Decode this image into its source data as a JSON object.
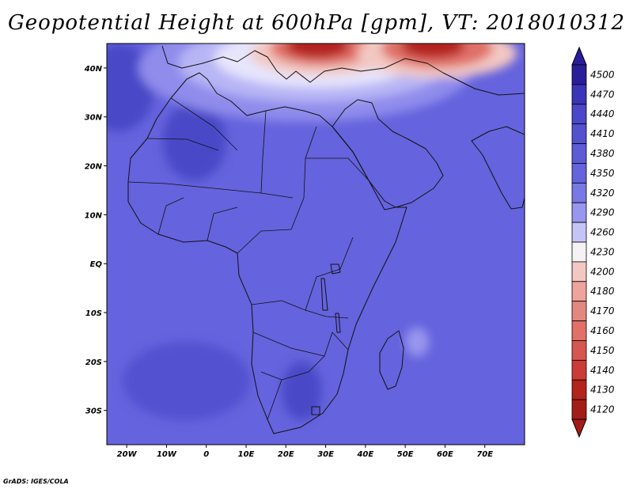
{
  "title": "Geopotential Height at 600hPa [gpm], VT: 2018010312",
  "credit": "GrADS: IGES/COLA",
  "map": {
    "lon_range": [
      -25,
      80
    ],
    "lat_range": [
      -37,
      45
    ],
    "lon_ticks": [
      {
        "value": -20,
        "label": "20W"
      },
      {
        "value": -10,
        "label": "10W"
      },
      {
        "value": 0,
        "label": "0"
      },
      {
        "value": 10,
        "label": "10E"
      },
      {
        "value": 20,
        "label": "20E"
      },
      {
        "value": 30,
        "label": "30E"
      },
      {
        "value": 40,
        "label": "40E"
      },
      {
        "value": 50,
        "label": "50E"
      },
      {
        "value": 60,
        "label": "60E"
      },
      {
        "value": 70,
        "label": "70E"
      }
    ],
    "lat_ticks": [
      {
        "value": 40,
        "label": "40N"
      },
      {
        "value": 30,
        "label": "30N"
      },
      {
        "value": 20,
        "label": "20N"
      },
      {
        "value": 10,
        "label": "10N"
      },
      {
        "value": 0,
        "label": "EQ"
      },
      {
        "value": -10,
        "label": "10S"
      },
      {
        "value": -20,
        "label": "20S"
      },
      {
        "value": -30,
        "label": "30S"
      }
    ],
    "background_color": "#6563dd",
    "features": [
      {
        "name": "ridge-northwest-atlantic",
        "color": "#4a48c8",
        "lon": -22,
        "lat": 36,
        "rlon": 9,
        "rlat": 9
      },
      {
        "name": "ridge-sahara",
        "color": "#4a48c8",
        "lon": -3,
        "lat": 25,
        "rlon": 8,
        "rlat": 8
      },
      {
        "name": "ridge-southern-africa",
        "color": "#4a48c8",
        "lon": 24,
        "lat": -26,
        "rlon": 5,
        "rlat": 6
      },
      {
        "name": "ridge-south-atlantic",
        "color": "#5351d0",
        "lon": -5,
        "lat": -24,
        "rlon": 16,
        "rlat": 8
      },
      {
        "name": "high-band-mediterranean-1",
        "color": "#8f8cec",
        "lon": 25,
        "lat": 40,
        "rlon": 42,
        "rlat": 11
      },
      {
        "name": "high-band-mediterranean-2",
        "color": "#b8b5f5",
        "lon": 27,
        "lat": 41,
        "rlon": 34,
        "rlat": 8
      },
      {
        "name": "high-band-mediterranean-3",
        "color": "#e6e5fc",
        "lon": 28,
        "lat": 42,
        "rlon": 26,
        "rlat": 6
      },
      {
        "name": "trough-mediterranean-1",
        "color": "#f3c8c2",
        "lon": 29,
        "lat": 43,
        "rlon": 18,
        "rlat": 4.5
      },
      {
        "name": "trough-mediterranean-2",
        "color": "#e07068",
        "lon": 29,
        "lat": 44,
        "rlon": 13,
        "rlat": 3.5
      },
      {
        "name": "trough-mediterranean-3",
        "color": "#b3241c",
        "lon": 28,
        "lat": 44.5,
        "rlon": 8,
        "rlat": 2.5
      },
      {
        "name": "trough-caspian-1",
        "color": "#f3c8c2",
        "lon": 58,
        "lat": 43,
        "rlon": 20,
        "rlat": 5
      },
      {
        "name": "trough-caspian-2",
        "color": "#e07068",
        "lon": 58,
        "lat": 44,
        "rlon": 14,
        "rlat": 4
      },
      {
        "name": "trough-caspian-3",
        "color": "#b3241c",
        "lon": 57,
        "lat": 44.5,
        "rlon": 8,
        "rlat": 2.5
      },
      {
        "name": "high-madagascar-east",
        "color": "#9896ee",
        "lon": 53,
        "lat": -16,
        "rlon": 3,
        "rlat": 3
      }
    ]
  },
  "colorbar": {
    "levels": [
      4500,
      4470,
      4440,
      4410,
      4380,
      4350,
      4320,
      4290,
      4260,
      4230,
      4200,
      4180,
      4170,
      4160,
      4150,
      4140,
      4130,
      4120
    ],
    "colors": [
      "#2a1d9a",
      "#3a34b8",
      "#4a48c8",
      "#5351d0",
      "#5d5bd6",
      "#6563dd",
      "#7a78e4",
      "#9896ee",
      "#c6c4f7",
      "#f6f2f4",
      "#f3c8c2",
      "#eea39c",
      "#e28880",
      "#e07068",
      "#d85650",
      "#cc3c36",
      "#b3241c",
      "#a41c18"
    ]
  }
}
